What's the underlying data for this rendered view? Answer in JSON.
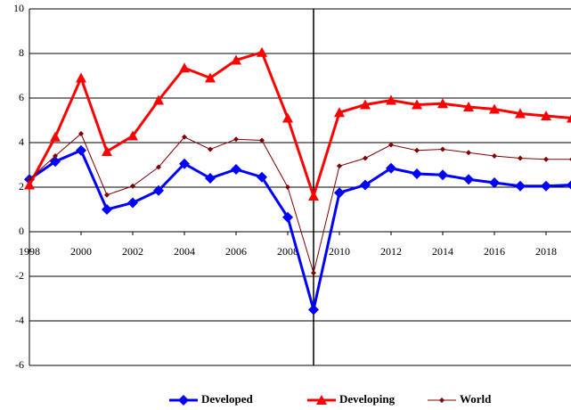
{
  "chart_data": {
    "type": "line",
    "x": [
      1998,
      1999,
      2000,
      2001,
      2002,
      2003,
      2004,
      2005,
      2006,
      2007,
      2008,
      2009,
      2010,
      2011,
      2012,
      2013,
      2014,
      2015,
      2016,
      2017,
      2018,
      2019
    ],
    "series": [
      {
        "name": "Developed",
        "color": "#0000ff",
        "marker": "diamond",
        "values": [
          2.35,
          3.15,
          3.65,
          1.0,
          1.3,
          1.85,
          3.05,
          2.4,
          2.8,
          2.45,
          0.65,
          -3.5,
          1.75,
          2.1,
          2.85,
          2.6,
          2.55,
          2.35,
          2.2,
          2.05,
          2.05,
          2.1
        ]
      },
      {
        "name": "Developing",
        "color": "#ff0000",
        "marker": "triangle",
        "values": [
          2.1,
          4.25,
          6.9,
          3.6,
          4.3,
          5.9,
          7.35,
          6.9,
          7.7,
          8.05,
          5.1,
          1.6,
          5.35,
          5.7,
          5.9,
          5.7,
          5.75,
          5.6,
          5.5,
          5.3,
          5.2,
          5.1
        ]
      },
      {
        "name": "World",
        "color": "#800000",
        "marker": "small-diamond",
        "values": [
          2.35,
          3.4,
          4.4,
          1.65,
          2.05,
          2.9,
          4.25,
          3.7,
          4.15,
          4.1,
          2.0,
          -1.85,
          2.95,
          3.3,
          3.9,
          3.65,
          3.7,
          3.55,
          3.4,
          3.3,
          3.25,
          3.25
        ]
      }
    ],
    "xlim": [
      1998,
      2019
    ],
    "xticks": [
      1998,
      2000,
      2002,
      2004,
      2006,
      2008,
      2010,
      2012,
      2014,
      2016,
      2018
    ],
    "ylim": [
      -6,
      10
    ],
    "yticks": [
      -6,
      -4,
      -2,
      0,
      2,
      4,
      6,
      8,
      10
    ],
    "grid": true,
    "reference_line": {
      "x": 2009
    },
    "legend": "bottom"
  }
}
